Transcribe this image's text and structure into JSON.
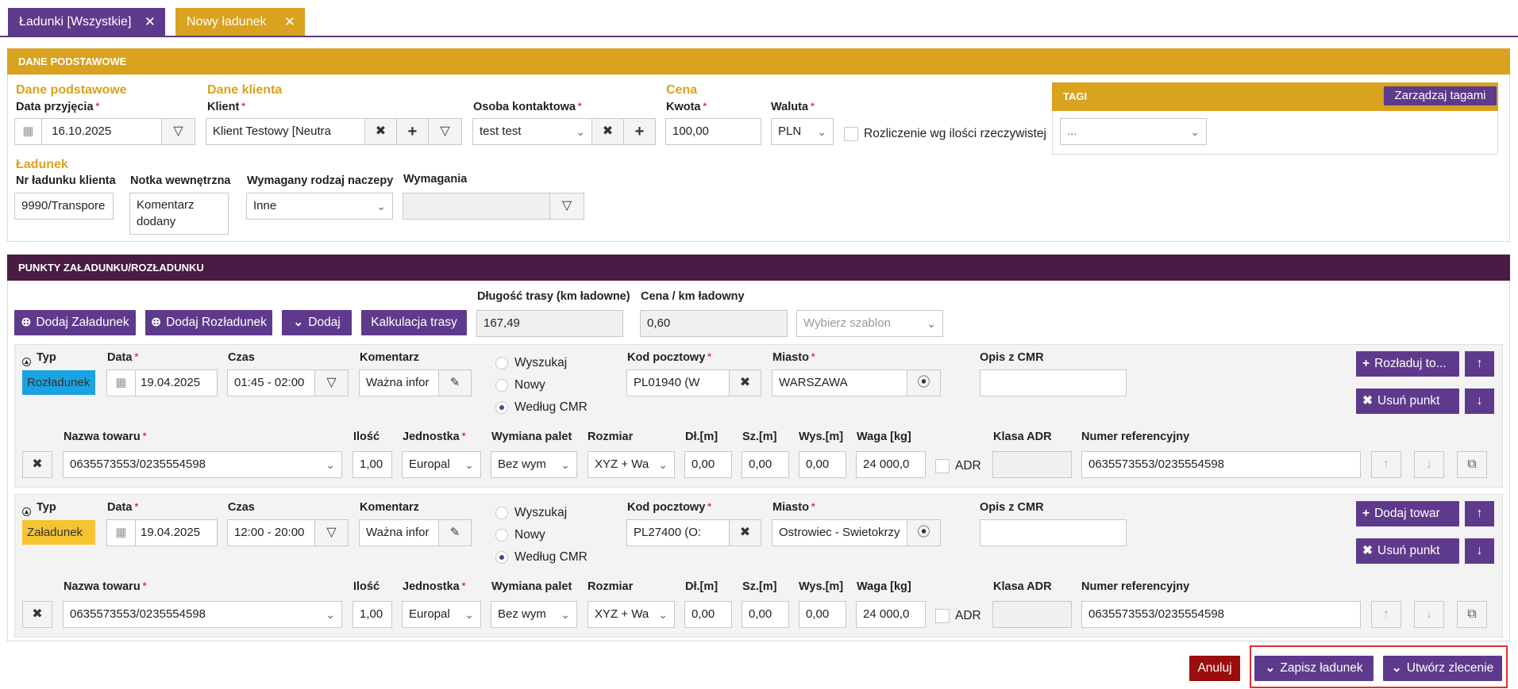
{
  "tabs": [
    {
      "label": "Ładunki [Wszystkie]"
    },
    {
      "label": "Nowy ładunek"
    }
  ],
  "colors": {
    "gold": "#d9a21f",
    "purple": "#5e3a8c",
    "dark_purple": "#4a1c44",
    "blue_badge": "#1aa3e0",
    "yellow_badge": "#f6c331",
    "red": "#9b0e0e"
  },
  "basic": {
    "header": "DANE PODSTAWOWE",
    "sec_basic": "Dane podstawowe",
    "sec_client": "Dane klienta",
    "sec_price": "Cena",
    "sec_cargo": "Ładunek",
    "date_label": "Data przyjęcia",
    "date_value": "16.10.2025",
    "client_label": "Klient",
    "client_value": "Klient Testowy [Neutra",
    "contact_label": "Osoba kontaktowa",
    "contact_value": "test test",
    "amount_label": "Kwota",
    "amount_value": "100,00",
    "currency_label": "Waluta",
    "currency_value": "PLN",
    "settle_label": "Rozliczenie wg ilości rzeczywistej",
    "client_no_label": "Nr ładunku klienta",
    "client_no_value": "9990/Transpore",
    "note_label": "Notka wewnętrzna",
    "note_line1": "Komentarz",
    "note_line2": "dodany",
    "trailer_label": "Wymagany rodzaj naczepy",
    "trailer_value": "Inne",
    "req_label": "Wymagania",
    "tags_header": "TAGI",
    "tags_button": "Zarządzaj tagami",
    "tags_value": "..."
  },
  "points": {
    "header": "PUNKTY ZAŁADUNKU/ROZŁADUNKU",
    "add_load": "Dodaj Załadunek",
    "add_unload": "Dodaj Rozładunek",
    "add": "Dodaj",
    "calc": "Kalkulacja trasy",
    "route_len_label": "Długość trasy (km ładowne)",
    "route_len_value": "167,49",
    "price_km_label": "Cena / km ładowny",
    "price_km_value": "0,60",
    "template_placeholder": "Wybierz szablon",
    "col_type": "Typ",
    "col_date": "Data",
    "col_time": "Czas",
    "col_comment": "Komentarz",
    "r_search": "Wyszukaj",
    "r_new": "Nowy",
    "r_cmr": "Według CMR",
    "col_postal": "Kod pocztowy",
    "col_city": "Miasto",
    "col_cmr_desc": "Opis z CMR",
    "g_name": "Nazwa towaru",
    "g_qty": "Ilość",
    "g_unit": "Jednostka",
    "g_pallet": "Wymiana palet",
    "g_size": "Rozmiar",
    "g_len": "Dł.[m]",
    "g_wid": "Sz.[m]",
    "g_hei": "Wys.[m]",
    "g_weight": "Waga [kg]",
    "g_adr_class": "Klasa ADR",
    "g_ref": "Numer referencyjny",
    "g_adr": "ADR",
    "rows": [
      {
        "type": "Rozładunek",
        "date": "19.04.2025",
        "time": "01:45 - 02:00",
        "comment": "Ważna infor",
        "postal": "PL01940 (W",
        "city": "WARSZAWA",
        "action1": "Rozładuj to...",
        "action2": "Usuń punkt",
        "goods": {
          "name": "0635573553/0235554598",
          "qty": "1,00",
          "unit": "Europal",
          "pallet": "Bez wym",
          "size": "XYZ + Wa",
          "len": "0,00",
          "wid": "0,00",
          "hei": "0,00",
          "weight": "24 000,0",
          "ref": "0635573553/0235554598"
        }
      },
      {
        "type": "Załadunek",
        "date": "19.04.2025",
        "time": "12:00 - 20:00",
        "comment": "Ważna infor",
        "postal": "PL27400 (O:",
        "city": "Ostrowiec - Swietokrzy",
        "action1": "Dodaj towar",
        "action2": "Usuń punkt",
        "goods": {
          "name": "0635573553/0235554598",
          "qty": "1,00",
          "unit": "Europal",
          "pallet": "Bez wym",
          "size": "XYZ + Wa",
          "len": "0,00",
          "wid": "0,00",
          "hei": "0,00",
          "weight": "24 000,0",
          "ref": "0635573553/0235554598"
        }
      }
    ]
  },
  "footer": {
    "cancel": "Anuluj",
    "save": "Zapisz ładunek",
    "create": "Utwórz zlecenie"
  }
}
